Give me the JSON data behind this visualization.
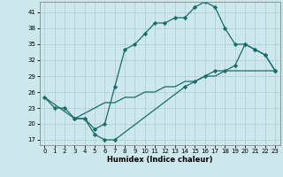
{
  "xlabel": "Humidex (Indice chaleur)",
  "bg_color": "#cce8ec",
  "line_color": "#1a6b6b",
  "grid_color": "#b0d0d8",
  "xlim": [
    -0.5,
    23.5
  ],
  "ylim": [
    16,
    43
  ],
  "yticks": [
    17,
    20,
    23,
    26,
    29,
    32,
    35,
    38,
    41
  ],
  "xticks": [
    0,
    1,
    2,
    3,
    4,
    5,
    6,
    7,
    8,
    9,
    10,
    11,
    12,
    13,
    14,
    15,
    16,
    17,
    18,
    19,
    20,
    21,
    22,
    23
  ],
  "line1_x": [
    0,
    1,
    2,
    3,
    4,
    5,
    6,
    7,
    8,
    9,
    10,
    11,
    12,
    13,
    14,
    15,
    16,
    17,
    18,
    19,
    20,
    21,
    22,
    23
  ],
  "line1_y": [
    25,
    23,
    23,
    21,
    21,
    19,
    20,
    27,
    34,
    35,
    37,
    39,
    39,
    40,
    40,
    42,
    43,
    42,
    38,
    35,
    35,
    34,
    33,
    30
  ],
  "line2_x": [
    3,
    4,
    5,
    6,
    7,
    14,
    15,
    16,
    17,
    18,
    19,
    20,
    21,
    22,
    23
  ],
  "line2_y": [
    21,
    21,
    18,
    17,
    17,
    27,
    28,
    29,
    30,
    30,
    31,
    35,
    34,
    33,
    30
  ],
  "line3_x": [
    0,
    3,
    4,
    5,
    6,
    7,
    8,
    9,
    10,
    11,
    12,
    13,
    14,
    15,
    16,
    17,
    18,
    19,
    20,
    21,
    22,
    23
  ],
  "line3_y": [
    25,
    21,
    22,
    23,
    24,
    24,
    25,
    25,
    26,
    26,
    27,
    27,
    28,
    28,
    29,
    29,
    30,
    30,
    30,
    30,
    30,
    30
  ]
}
